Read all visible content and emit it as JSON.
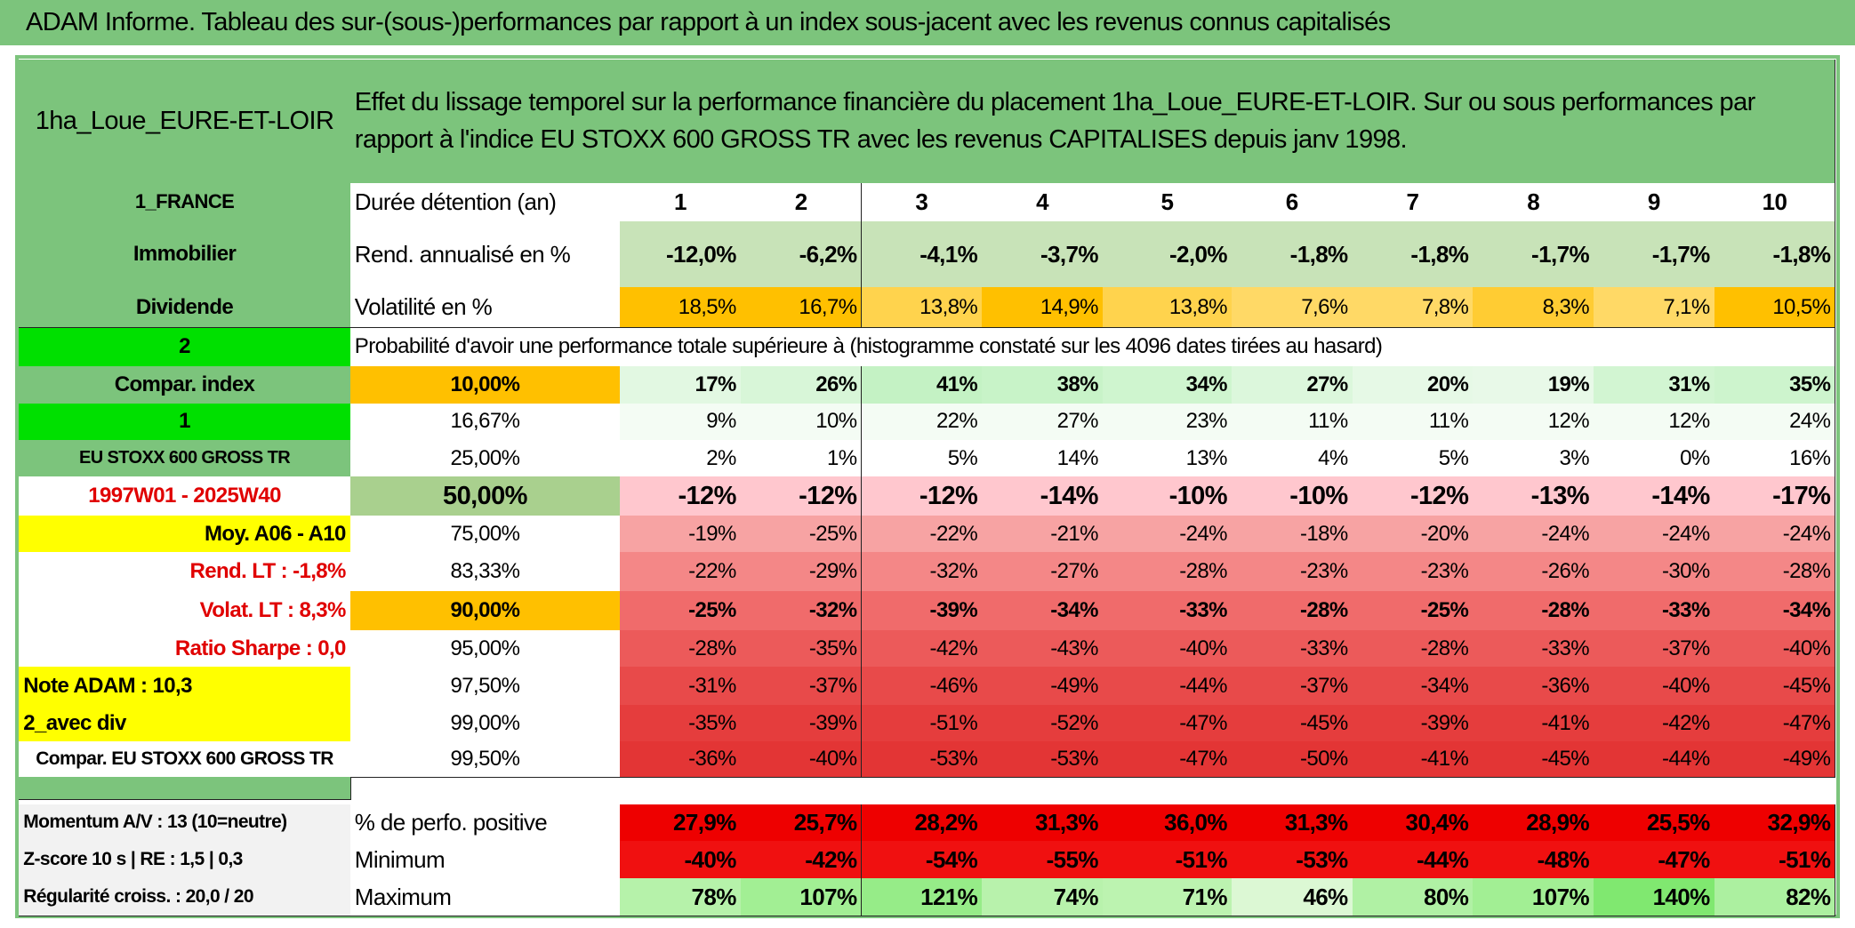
{
  "header": {
    "title": "ADAM Informe. Tableau des sur-(sous-)performances par rapport à un index sous-jacent avec les revenus connus capitalisés"
  },
  "table": {
    "corner": "1ha_Loue_EURE-ET-LOIR",
    "description": "Effet du lissage temporel sur la performance financière du placement 1ha_Loue_EURE-ET-LOIR. Sur ou sous performances par rapport à l'indice EU STOXX 600 GROSS TR avec les revenus CAPITALISES depuis janv 1998.",
    "rows": [
      {
        "side": "1_FRANCE",
        "label": "Durée détention (an)",
        "cells": [
          "1",
          "2",
          "3",
          "4",
          "5",
          "6",
          "7",
          "8",
          "9",
          "10"
        ]
      },
      {
        "side": "Immobilier",
        "label": "Rend. annualisé en %",
        "cells": [
          "-12,0%",
          "-6,2%",
          "-4,1%",
          "-3,7%",
          "-2,0%",
          "-1,8%",
          "-1,8%",
          "-1,7%",
          "-1,7%",
          "-1,8%"
        ]
      },
      {
        "side": "Dividende",
        "label": "Volatilité en %",
        "cells": [
          "18,5%",
          "16,7%",
          "13,8%",
          "14,9%",
          "13,8%",
          "7,6%",
          "7,8%",
          "8,3%",
          "7,1%",
          "10,5%"
        ]
      },
      {
        "side": "2",
        "label": "Probabilité d'avoir une performance totale supérieure à (histogramme constaté sur les 4096 dates tirées au hasard)"
      },
      {
        "side": "Compar. index",
        "label": "10,00%",
        "cells": [
          "17%",
          "26%",
          "41%",
          "38%",
          "34%",
          "27%",
          "20%",
          "19%",
          "31%",
          "35%"
        ]
      },
      {
        "side": "1",
        "label": "16,67%",
        "cells": [
          "9%",
          "10%",
          "22%",
          "27%",
          "23%",
          "11%",
          "11%",
          "12%",
          "12%",
          "24%"
        ]
      },
      {
        "side": "EU STOXX 600 GROSS TR",
        "label": "25,00%",
        "cells": [
          "2%",
          "1%",
          "5%",
          "14%",
          "13%",
          "4%",
          "5%",
          "3%",
          "0%",
          "16%"
        ]
      },
      {
        "side": "1997W01 - 2025W40",
        "label": "50,00%",
        "cells": [
          "-12%",
          "-12%",
          "-12%",
          "-14%",
          "-10%",
          "-10%",
          "-12%",
          "-13%",
          "-14%",
          "-17%"
        ]
      },
      {
        "side": "Moy. A06 - A10",
        "label": "75,00%",
        "cells": [
          "-19%",
          "-25%",
          "-22%",
          "-21%",
          "-24%",
          "-18%",
          "-20%",
          "-24%",
          "-24%",
          "-24%"
        ]
      },
      {
        "side": "Rend. LT :   -1,8%",
        "label": "83,33%",
        "cells": [
          "-22%",
          "-29%",
          "-32%",
          "-27%",
          "-28%",
          "-23%",
          "-23%",
          "-26%",
          "-30%",
          "-28%"
        ]
      },
      {
        "side": "Volat. LT :   8,3%",
        "label": "90,00%",
        "cells": [
          "-25%",
          "-32%",
          "-39%",
          "-34%",
          "-33%",
          "-28%",
          "-25%",
          "-28%",
          "-33%",
          "-34%"
        ]
      },
      {
        "side": "Ratio Sharpe :   0,0",
        "label": "95,00%",
        "cells": [
          "-28%",
          "-35%",
          "-42%",
          "-43%",
          "-40%",
          "-33%",
          "-28%",
          "-33%",
          "-37%",
          "-40%"
        ]
      },
      {
        "side": "Note ADAM : 10,3",
        "label": "97,50%",
        "cells": [
          "-31%",
          "-37%",
          "-46%",
          "-49%",
          "-44%",
          "-37%",
          "-34%",
          "-36%",
          "-40%",
          "-45%"
        ]
      },
      {
        "side": "2_avec div",
        "label": "99,00%",
        "cells": [
          "-35%",
          "-39%",
          "-51%",
          "-52%",
          "-47%",
          "-45%",
          "-39%",
          "-41%",
          "-42%",
          "-47%"
        ]
      },
      {
        "side": "Compar. EU STOXX 600 GROSS TR",
        "label": "99,50%",
        "cells": [
          "-36%",
          "-40%",
          "-53%",
          "-53%",
          "-47%",
          "-50%",
          "-41%",
          "-45%",
          "-44%",
          "-49%"
        ]
      },
      {
        "side": "Momentum A/V : 13 (10=neutre)",
        "label": "% de perfo. positive",
        "cells": [
          "27,9%",
          "25,7%",
          "28,2%",
          "31,3%",
          "36,0%",
          "31,3%",
          "30,4%",
          "28,9%",
          "25,5%",
          "32,9%"
        ]
      },
      {
        "side": "Z-score 10 s | RE : 1,5 | 0,3",
        "label": "Minimum",
        "cells": [
          "-40%",
          "-42%",
          "-54%",
          "-55%",
          "-51%",
          "-53%",
          "-44%",
          "-48%",
          "-47%",
          "-51%"
        ]
      },
      {
        "side": "Régularité croiss. : 20,0 / 20",
        "label": "Maximum",
        "cells": [
          "78%",
          "107%",
          "121%",
          "74%",
          "71%",
          "46%",
          "80%",
          "107%",
          "140%",
          "82%"
        ]
      }
    ]
  }
}
